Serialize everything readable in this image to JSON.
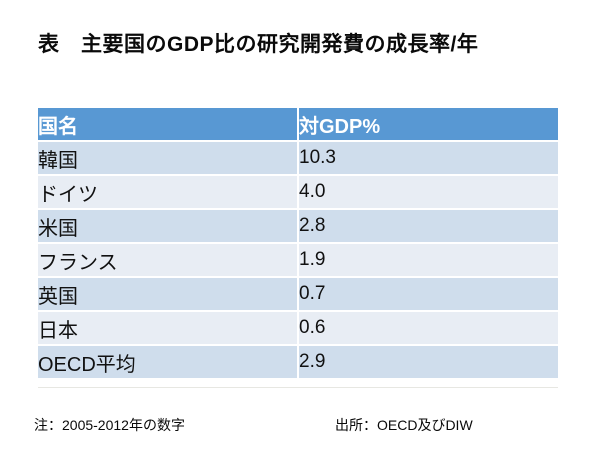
{
  "slide": {
    "title": "表　主要国のGDP比の研究開発費の成長率/年",
    "notes": {
      "left": "注：2005-2012年の数字",
      "right": "出所：OECD及びDIW"
    }
  },
  "table": {
    "headers": {
      "country": "国名",
      "value": "対GDP%"
    },
    "rows": [
      {
        "country": "韓国",
        "value": "10.3"
      },
      {
        "country": "ドイツ",
        "value": "4.0"
      },
      {
        "country": "米国",
        "value": "2.8"
      },
      {
        "country": "フランス",
        "value": "1.9"
      },
      {
        "country": "英国",
        "value": "0.7"
      },
      {
        "country": "日本",
        "value": "0.6"
      },
      {
        "country": "OECD平均",
        "value": "2.9"
      }
    ]
  },
  "colors": {
    "header_bg": "#5898D3",
    "header_text": "#FFFFFF",
    "row_band_dark": "#CFDDEC",
    "row_band_light": "#E8EDF4",
    "body_text": "#111111",
    "background": "#FFFFFF"
  },
  "chart_data": {
    "type": "table",
    "title": "表　主要国のGDP比の研究開発費の成長率/年",
    "columns": [
      "国名",
      "対GDP%"
    ],
    "categories": [
      "韓国",
      "ドイツ",
      "米国",
      "フランス",
      "英国",
      "日本",
      "OECD平均"
    ],
    "values": [
      10.3,
      4.0,
      2.8,
      1.9,
      0.7,
      0.6,
      2.9
    ],
    "notes": [
      "注：2005-2012年の数字",
      "出所：OECD及びDIW"
    ]
  }
}
